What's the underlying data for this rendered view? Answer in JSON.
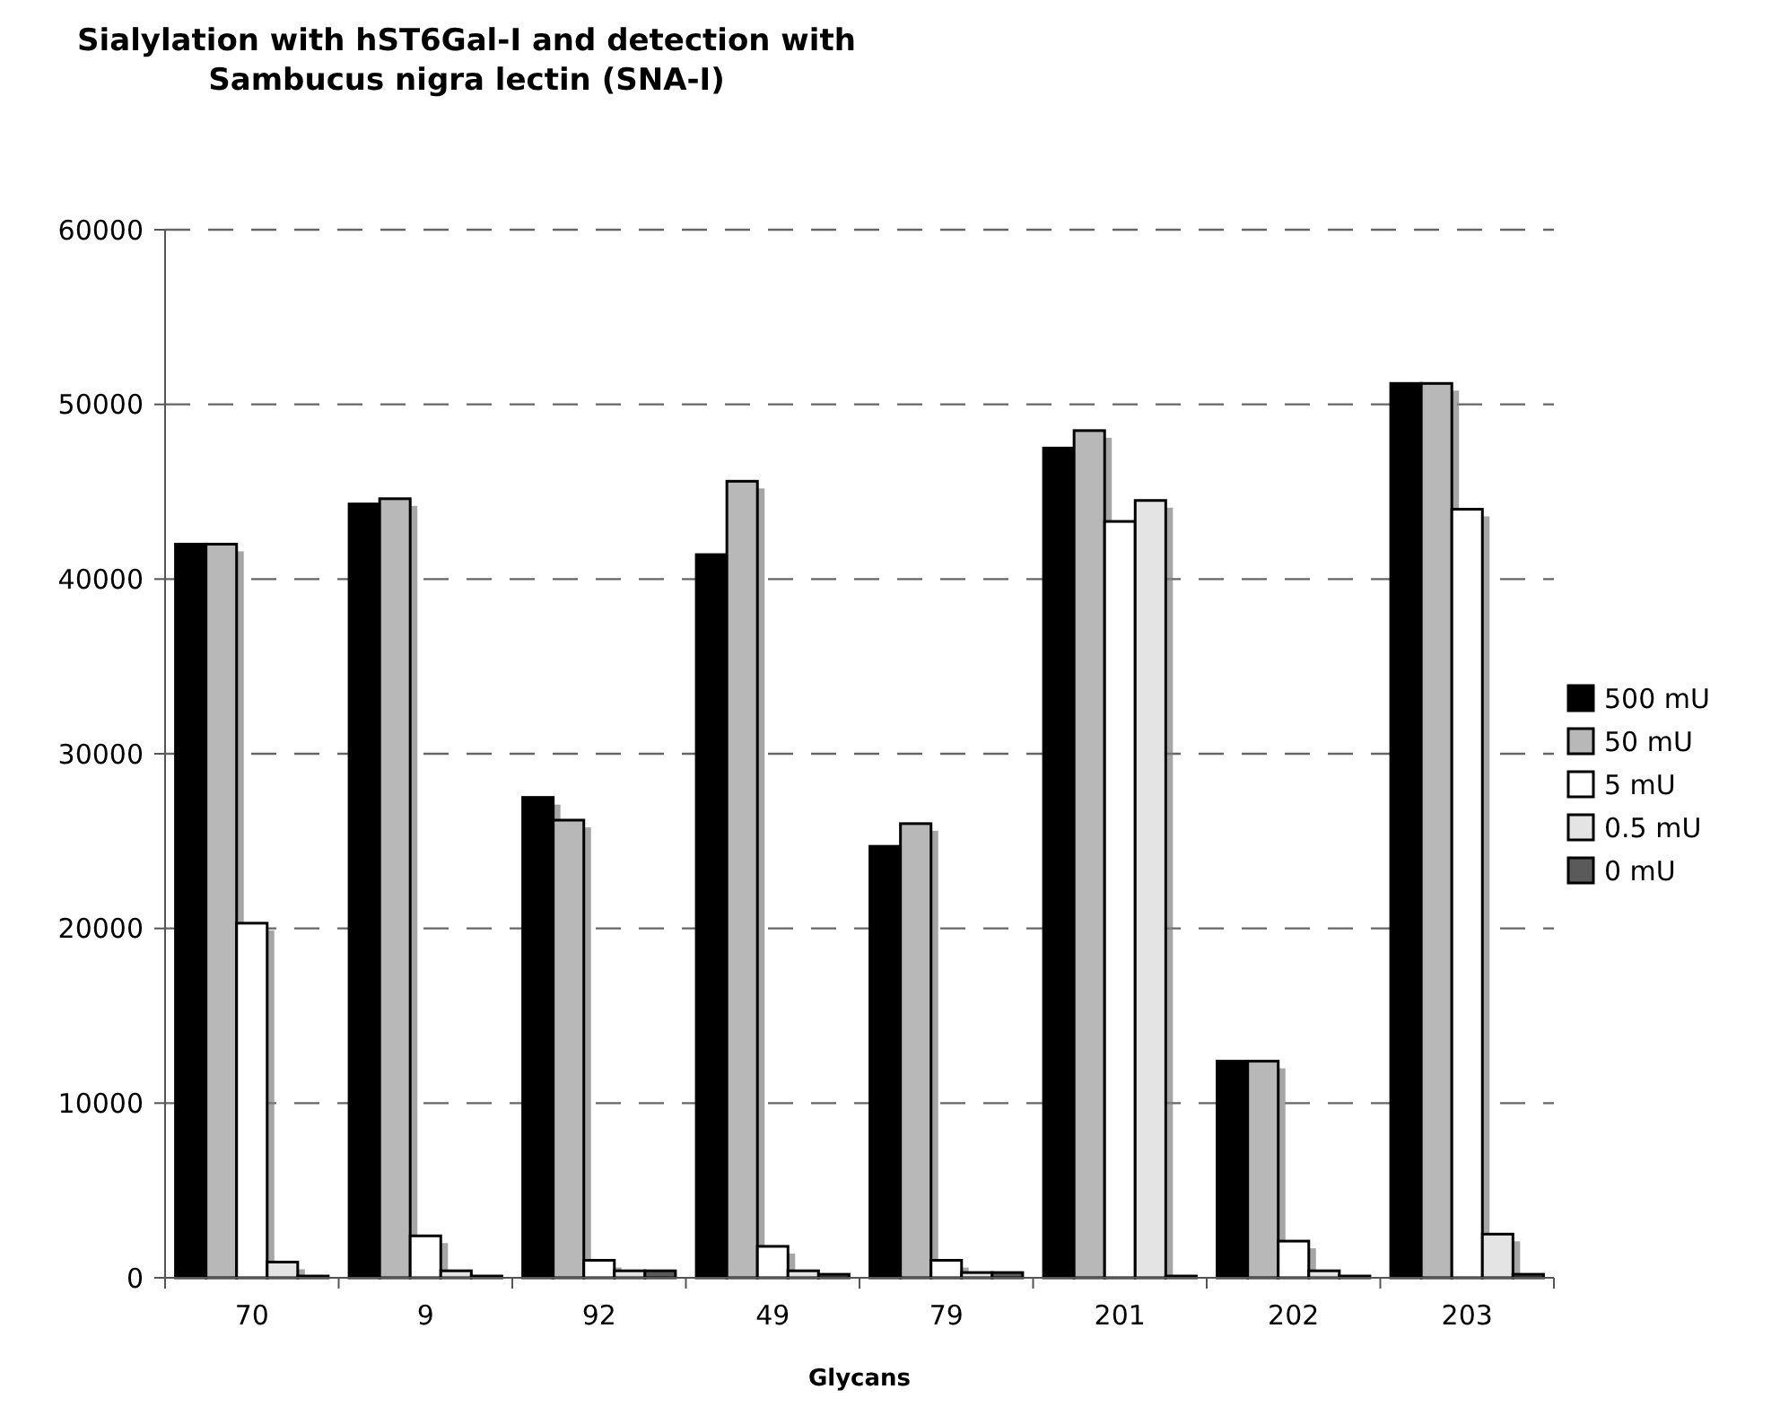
{
  "chart_data": {
    "type": "bar",
    "title": "Sialylation with hST6Gal-I and detection with Sambucus nigra lectin (SNA-I)",
    "xlabel": "Glycans",
    "categories": [
      "70",
      "9",
      "92",
      "49",
      "79",
      "201",
      "202",
      "203"
    ],
    "series": [
      {
        "name": "500 mU",
        "color": "#000000",
        "values": [
          42000,
          44300,
          27500,
          41400,
          24700,
          47500,
          12400,
          51200
        ]
      },
      {
        "name": "50 mU",
        "color": "#b8b8b8",
        "values": [
          42000,
          44600,
          26200,
          45600,
          26000,
          48500,
          12400,
          51200
        ]
      },
      {
        "name": "5 mU",
        "color": "#ffffff",
        "values": [
          20300,
          2400,
          1000,
          1800,
          1000,
          43300,
          2100,
          44000
        ]
      },
      {
        "name": "0.5 mU",
        "color": "#e4e4e4",
        "values": [
          900,
          400,
          400,
          400,
          300,
          44500,
          400,
          2500
        ]
      },
      {
        "name": "0 mU",
        "color": "#5a5a5a",
        "values": [
          100,
          100,
          400,
          200,
          300,
          100,
          100,
          200
        ]
      }
    ],
    "ylim": [
      0,
      60000
    ],
    "yticks": [
      0,
      10000,
      20000,
      30000,
      40000,
      50000,
      60000
    ],
    "grid": "y",
    "legend": "right"
  }
}
